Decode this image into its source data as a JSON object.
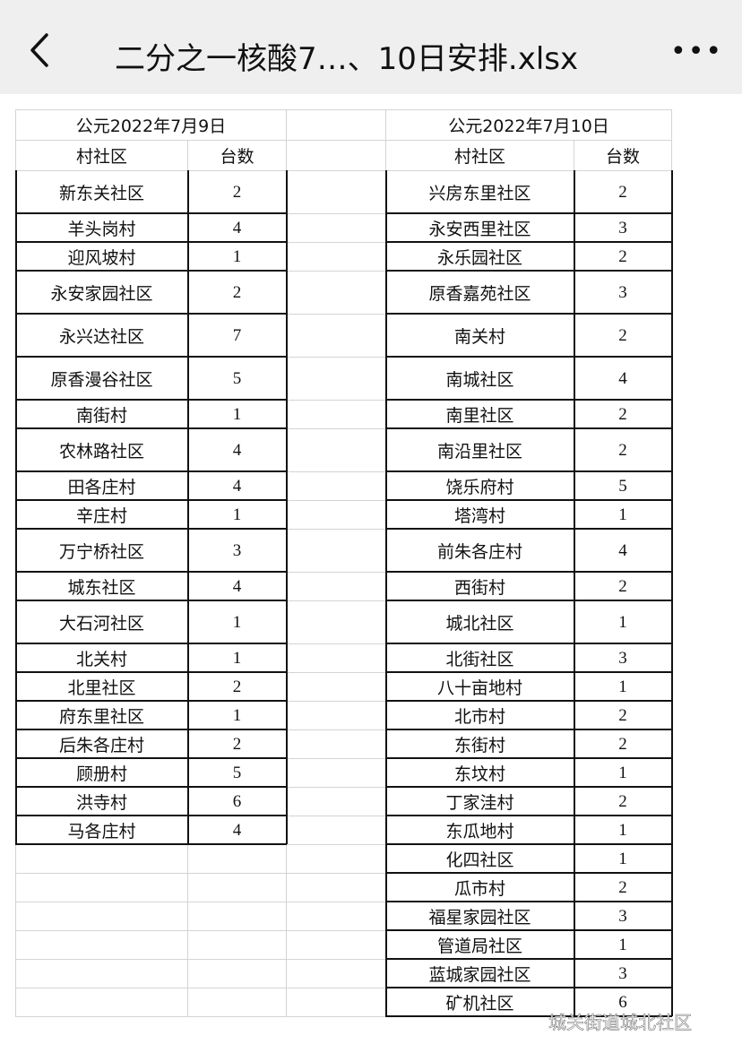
{
  "header": {
    "title": "二分之一核酸7…、10日安排.xlsx",
    "back_icon": "chevron-left-icon",
    "more_label": "•••"
  },
  "sheet": {
    "left": {
      "date": "公元2022年7月9日",
      "col_name": "村社区",
      "col_count": "台数",
      "rows": [
        {
          "name": "新东关社区",
          "count": "2"
        },
        {
          "name": "羊头岗村",
          "count": "4"
        },
        {
          "name": "迎风坡村",
          "count": "1"
        },
        {
          "name": "永安家园社区",
          "count": "2"
        },
        {
          "name": "永兴达社区",
          "count": "7"
        },
        {
          "name": "原香漫谷社区",
          "count": "5"
        },
        {
          "name": "南街村",
          "count": "1"
        },
        {
          "name": "农林路社区",
          "count": "4"
        },
        {
          "name": "田各庄村",
          "count": "4"
        },
        {
          "name": "辛庄村",
          "count": "1"
        },
        {
          "name": "万宁桥社区",
          "count": "3"
        },
        {
          "name": "城东社区",
          "count": "4"
        },
        {
          "name": "大石河社区",
          "count": "1"
        },
        {
          "name": "北关村",
          "count": "1"
        },
        {
          "name": "北里社区",
          "count": "2"
        },
        {
          "name": "府东里社区",
          "count": "1"
        },
        {
          "name": "后朱各庄村",
          "count": "2"
        },
        {
          "name": "顾册村",
          "count": "5"
        },
        {
          "name": "洪寺村",
          "count": "6"
        },
        {
          "name": "马各庄村",
          "count": "4"
        }
      ]
    },
    "right": {
      "date": "公元2022年7月10日",
      "col_name": "村社区",
      "col_count": "台数",
      "rows": [
        {
          "name": "兴房东里社区",
          "count": "2"
        },
        {
          "name": "永安西里社区",
          "count": "3"
        },
        {
          "name": "永乐园社区",
          "count": "2"
        },
        {
          "name": "原香嘉苑社区",
          "count": "3"
        },
        {
          "name": "南关村",
          "count": "2"
        },
        {
          "name": "南城社区",
          "count": "4"
        },
        {
          "name": "南里社区",
          "count": "2"
        },
        {
          "name": "南沿里社区",
          "count": "2"
        },
        {
          "name": "饶乐府村",
          "count": "5"
        },
        {
          "name": "塔湾村",
          "count": "1"
        },
        {
          "name": "前朱各庄村",
          "count": "4"
        },
        {
          "name": "西街村",
          "count": "2"
        },
        {
          "name": "城北社区",
          "count": "1"
        },
        {
          "name": "北街社区",
          "count": "3"
        },
        {
          "name": "八十亩地村",
          "count": "1"
        },
        {
          "name": "北市村",
          "count": "2"
        },
        {
          "name": "东街村",
          "count": "2"
        },
        {
          "name": "东坟村",
          "count": "1"
        },
        {
          "name": "丁家洼村",
          "count": "2"
        },
        {
          "name": "东瓜地村",
          "count": "1"
        },
        {
          "name": "化四社区",
          "count": "1"
        },
        {
          "name": "瓜市村",
          "count": "2"
        },
        {
          "name": "福星家园社区",
          "count": "3"
        },
        {
          "name": "管道局社区",
          "count": "1"
        },
        {
          "name": "蓝城家园社区",
          "count": "3"
        },
        {
          "name": "矿机社区",
          "count": "6"
        }
      ]
    }
  },
  "watermark": "城关街道城北社区"
}
